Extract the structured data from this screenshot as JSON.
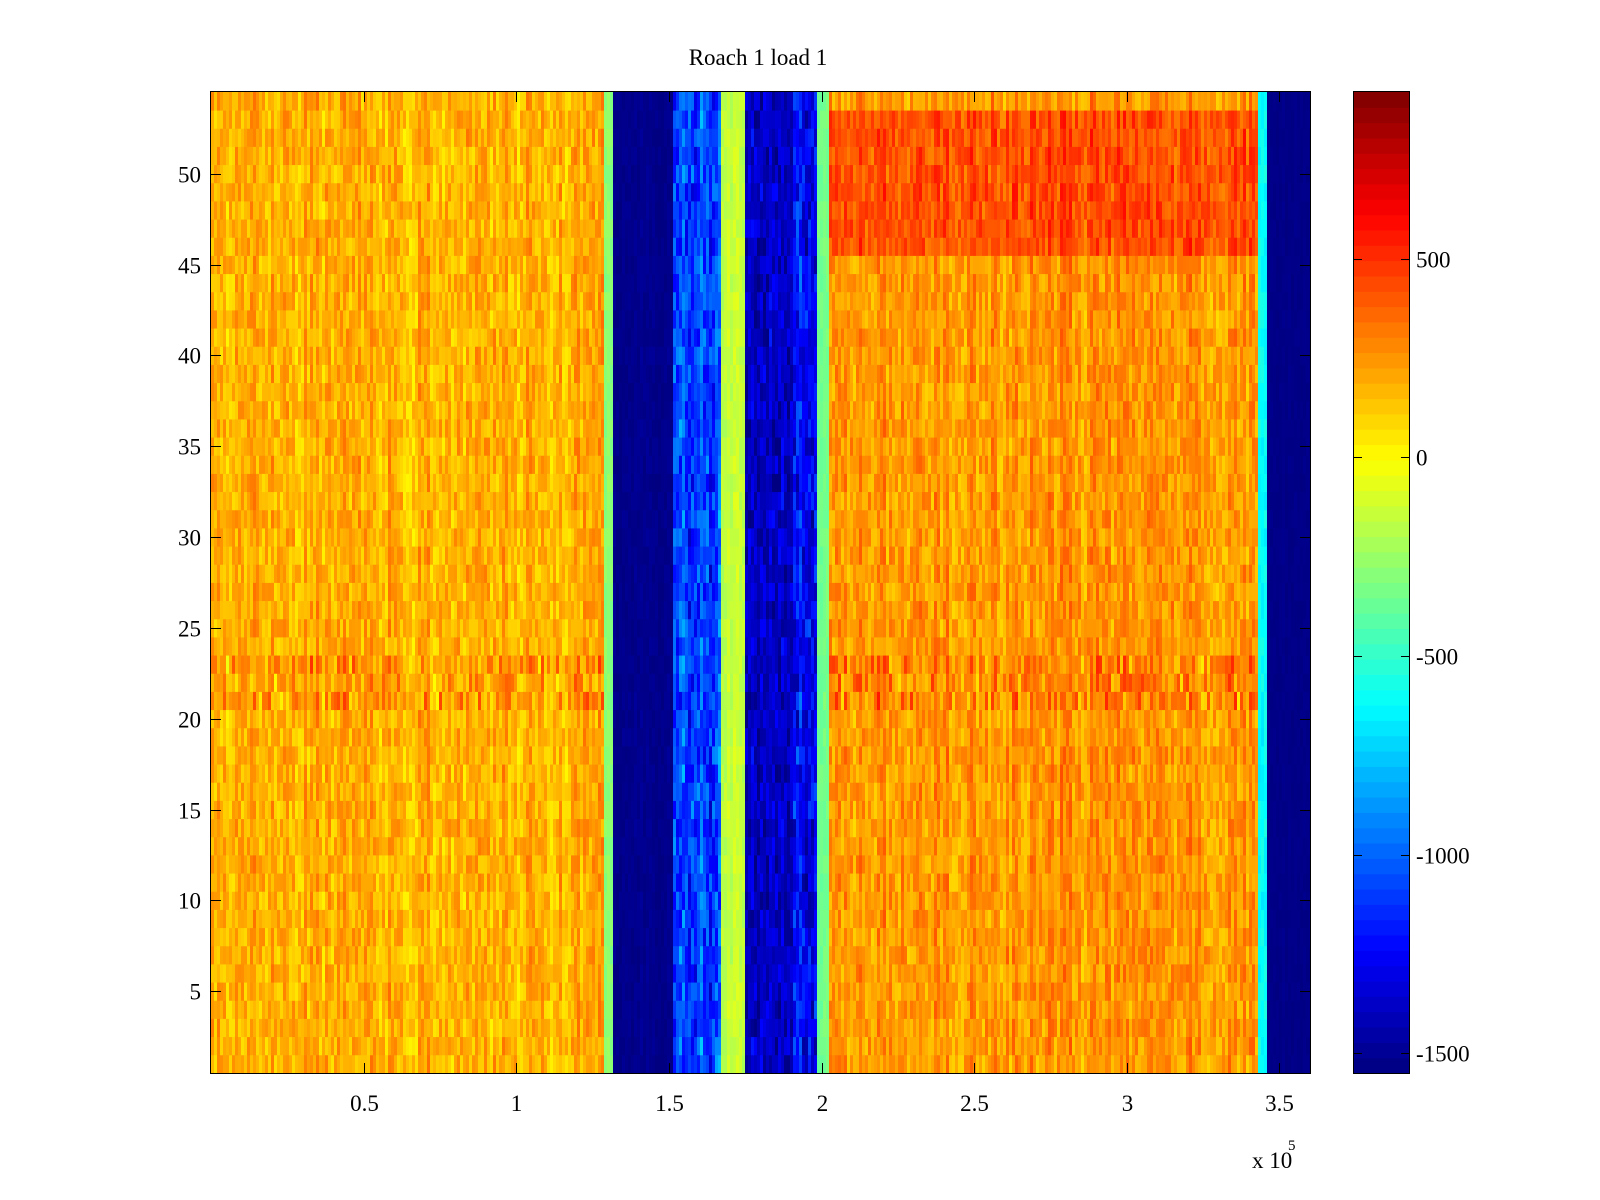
{
  "chart_data": {
    "type": "heatmap",
    "title": "Roach 1 load 1",
    "xlabel": "",
    "ylabel": "",
    "x_range": [
      0,
      360000
    ],
    "y_range": [
      0.5,
      54.5
    ],
    "x_scale_label": "x 10",
    "x_scale_exponent": "5",
    "x_ticks": [
      {
        "value": 50000,
        "label": "0.5"
      },
      {
        "value": 100000,
        "label": "1"
      },
      {
        "value": 150000,
        "label": "1.5"
      },
      {
        "value": 200000,
        "label": "2"
      },
      {
        "value": 250000,
        "label": "2.5"
      },
      {
        "value": 300000,
        "label": "3"
      },
      {
        "value": 350000,
        "label": "3.5"
      }
    ],
    "y_ticks": [
      {
        "value": 5,
        "label": "5"
      },
      {
        "value": 10,
        "label": "10"
      },
      {
        "value": 15,
        "label": "15"
      },
      {
        "value": 20,
        "label": "20"
      },
      {
        "value": 25,
        "label": "25"
      },
      {
        "value": 30,
        "label": "30"
      },
      {
        "value": 35,
        "label": "35"
      },
      {
        "value": 40,
        "label": "40"
      },
      {
        "value": 45,
        "label": "45"
      },
      {
        "value": 50,
        "label": "50"
      }
    ],
    "colorbar": {
      "colormap": "jet",
      "range": [
        -1550,
        920
      ],
      "ticks": [
        {
          "value": 500,
          "label": "500"
        },
        {
          "value": 0,
          "label": "0"
        },
        {
          "value": -500,
          "label": "-500"
        },
        {
          "value": -1000,
          "label": "-1000"
        },
        {
          "value": -1500,
          "label": "-1500"
        }
      ]
    },
    "rows": 54,
    "column_bands": [
      {
        "x_start": 0,
        "x_end": 128000,
        "mean": 180,
        "spread": 170
      },
      {
        "x_start": 128000,
        "x_end": 131000,
        "mean": -300,
        "spread": 60
      },
      {
        "x_start": 131000,
        "x_end": 151000,
        "mean": -1520,
        "spread": 40
      },
      {
        "x_start": 151000,
        "x_end": 167000,
        "mean": -1050,
        "spread": 260
      },
      {
        "x_start": 167000,
        "x_end": 174000,
        "mean": -150,
        "spread": 80
      },
      {
        "x_start": 174000,
        "x_end": 190000,
        "mean": -1380,
        "spread": 150
      },
      {
        "x_start": 190000,
        "x_end": 198000,
        "mean": -1250,
        "spread": 250
      },
      {
        "x_start": 198000,
        "x_end": 202000,
        "mean": -350,
        "spread": 60
      },
      {
        "x_start": 202000,
        "x_end": 342000,
        "mean": 250,
        "spread": 170
      },
      {
        "x_start": 342000,
        "x_end": 345000,
        "mean": -600,
        "spread": 100
      },
      {
        "x_start": 345000,
        "x_end": 360000,
        "mean": -1530,
        "spread": 20
      }
    ],
    "hot_rows": [
      46,
      47,
      48,
      49,
      50,
      51,
      52,
      53
    ],
    "hot_row_offset": 180,
    "noisy_rows": [
      21,
      22,
      23
    ],
    "grid": false,
    "colorbar_position": "right"
  }
}
